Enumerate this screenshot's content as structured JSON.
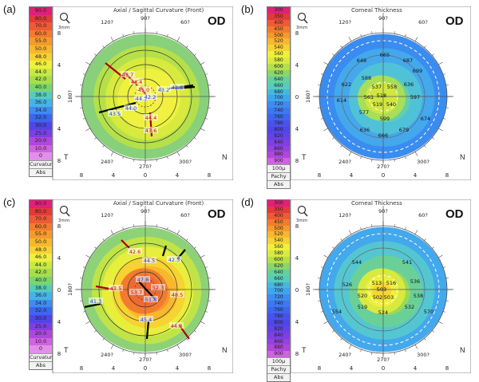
{
  "panels": [
    {
      "label": "(a)",
      "title": "Axial / Sagittal Curvature (Front)",
      "eye": "OD",
      "scale": [
        "90.0",
        "80.0",
        "70.0",
        "60.0",
        "55.0",
        "50.0",
        "48.0",
        "46.0",
        "44.0",
        "42.0",
        "40.0",
        "38.0",
        "36.0",
        "34.0",
        "32.0",
        "30.0",
        "25.0",
        "20.0",
        "10.0",
        "0"
      ],
      "scale_colors": [
        "#e0207a",
        "#e23a3a",
        "#ee5a35",
        "#f37b2e",
        "#f59a2c",
        "#f7b82e",
        "#f6d233",
        "#eef03c",
        "#c8e842",
        "#a6de4a",
        "#7bd66a",
        "#54cdbc",
        "#46b2e6",
        "#3e8cf0",
        "#3d66ef",
        "#4f46e8",
        "#7e3fe3",
        "#b046dc",
        "#cf63e0",
        "#e090e8"
      ],
      "scale_footer": [
        "Curvature",
        "Abs"
      ],
      "zone_colors": [
        "#88d07a",
        "#b5e04a",
        "#d8ea3e",
        "#eef23e",
        "#f2f040"
      ],
      "inner_colors": [],
      "values": [
        {
          "t": "43.7",
          "c": "#cc0000",
          "x": -22,
          "y": -27
        },
        {
          "t": "44.4",
          "c": "#cc0000",
          "x": -11,
          "y": -18
        },
        {
          "t": "45.0",
          "c": "#cc0000",
          "x": -2,
          "y": -8
        },
        {
          "t": "43.2",
          "c": "#1a3cff",
          "x": 23,
          "y": -8
        },
        {
          "t": "42.6",
          "c": "#1a3cff",
          "x": 40,
          "y": -11
        },
        {
          "t": "44.1",
          "c": "#1a3cff",
          "x": -5,
          "y": 3
        },
        {
          "t": "42.2",
          "c": "#1a3cff",
          "x": 6,
          "y": 1
        },
        {
          "t": "44.0",
          "c": "#1a3cff",
          "x": -18,
          "y": 15
        },
        {
          "t": "43.5",
          "c": "#1a3cff",
          "x": -38,
          "y": 22
        },
        {
          "t": "44.4",
          "c": "#cc0000",
          "x": 7,
          "y": 27
        },
        {
          "t": "43.6",
          "c": "#cc0000",
          "x": 7,
          "y": 43
        }
      ],
      "angles": {
        "top": "90?",
        "upper_left": "120?",
        "upper_right": "60?",
        "left": "180?",
        "lower_left": "240?",
        "bottom": "270?",
        "lower_right": "300?"
      },
      "xticks": [
        "8",
        "4",
        "0",
        "4",
        "8"
      ],
      "yticks": [
        "8",
        "4",
        "0",
        "4",
        "8"
      ],
      "corner_left": "T",
      "corner_right": "N",
      "extra_label": "",
      "mm_label": "3mm"
    },
    {
      "label": "(b)",
      "title": "Corneal Thickness",
      "eye": "OD",
      "scale": [
        "300",
        "350",
        "400",
        "450",
        "500",
        "520",
        "540",
        "560",
        "580",
        "600",
        "620",
        "640",
        "660",
        "680",
        "700",
        "720",
        "740",
        "760",
        "780",
        "800",
        "820",
        "840",
        "860",
        "880",
        "900"
      ],
      "scale_colors": [
        "#e0207a",
        "#e23a3a",
        "#ee5a35",
        "#f37b2e",
        "#f59a2c",
        "#f7b82e",
        "#f6d233",
        "#eef03c",
        "#d8ea40",
        "#b5e04a",
        "#8ad66a",
        "#62d0a0",
        "#54cdbc",
        "#46b8e0",
        "#40a6ec",
        "#3e8cf0",
        "#3d78ef",
        "#3d66ef",
        "#4a52ea",
        "#4f46e8",
        "#6642e6",
        "#7e3fe3",
        "#9542df",
        "#b046dc",
        "#cf63e0"
      ],
      "scale_footer": [
        "100µ",
        "Pachy",
        "Abs"
      ],
      "zone_colors": [
        "#3a8cf0",
        "#44a8ec",
        "#50c2d8",
        "#62d0a8"
      ],
      "inner_colors": [
        "#a8de58",
        "#d0e83e"
      ],
      "values": [
        {
          "t": "665",
          "c": "#111",
          "x": 2,
          "y": -52
        },
        {
          "t": "648",
          "c": "#111",
          "x": -27,
          "y": -45
        },
        {
          "t": "687",
          "c": "#111",
          "x": 31,
          "y": -45
        },
        {
          "t": "622",
          "c": "#111",
          "x": -46,
          "y": -15
        },
        {
          "t": "699",
          "c": "#111",
          "x": 43,
          "y": -32
        },
        {
          "t": "588",
          "c": "#111",
          "x": -21,
          "y": -23
        },
        {
          "t": "537",
          "c": "#111",
          "x": -8,
          "y": -12
        },
        {
          "t": "558",
          "c": "#111",
          "x": 11,
          "y": -12
        },
        {
          "t": "636",
          "c": "#111",
          "x": 32,
          "y": -15
        },
        {
          "t": "561",
          "c": "#111",
          "x": -18,
          "y": 1
        },
        {
          "t": "518",
          "c": "#111",
          "x": -2,
          "y": -1
        },
        {
          "t": "597",
          "c": "#111",
          "x": 40,
          "y": 1
        },
        {
          "t": "614",
          "c": "#111",
          "x": -52,
          "y": 5
        },
        {
          "t": "519",
          "c": "#111",
          "x": -7,
          "y": 10
        },
        {
          "t": "540",
          "c": "#111",
          "x": 10,
          "y": 10
        },
        {
          "t": "577",
          "c": "#111",
          "x": -24,
          "y": 20
        },
        {
          "t": "599",
          "c": "#111",
          "x": 2,
          "y": 28
        },
        {
          "t": "674",
          "c": "#111",
          "x": 53,
          "y": 28
        },
        {
          "t": "636",
          "c": "#111",
          "x": -23,
          "y": 42
        },
        {
          "t": "666",
          "c": "#111",
          "x": 0,
          "y": 49
        },
        {
          "t": "679",
          "c": "#111",
          "x": 26,
          "y": 42
        }
      ],
      "angles": {
        "top": "90?",
        "upper_left": "120?",
        "upper_right": "60?",
        "left": "180?",
        "lower_left": "240?",
        "bottom": "270?",
        "lower_right": "300?"
      },
      "xticks": [
        "8",
        "4",
        "0",
        "4",
        "8"
      ],
      "yticks": [
        "8",
        "4",
        "0",
        "4",
        "8"
      ],
      "corner_left": "T",
      "corner_right": "N",
      "extra_label": "",
      "mm_label": "3mm"
    },
    {
      "label": "(c)",
      "title": "Axial / Sagittal Curvature (Front)",
      "eye": "OD",
      "scale": [
        "90.0",
        "80.0",
        "70.0",
        "60.0",
        "55.0",
        "50.0",
        "48.0",
        "46.0",
        "44.0",
        "42.0",
        "40.0",
        "38.0",
        "36.0",
        "34.0",
        "32.0",
        "30.0",
        "25.0",
        "20.0",
        "10.0",
        "0"
      ],
      "scale_colors": [
        "#e0207a",
        "#e23a3a",
        "#ee5a35",
        "#f37b2e",
        "#f59a2c",
        "#f7b82e",
        "#f6d233",
        "#eef03c",
        "#c8e842",
        "#a6de4a",
        "#7bd66a",
        "#54cdbc",
        "#46b2e6",
        "#3e8cf0",
        "#3d66ef",
        "#4f46e8",
        "#7e3fe3",
        "#b046dc",
        "#cf63e0",
        "#e090e8"
      ],
      "scale_footer": [
        "Curvature",
        "Abs"
      ],
      "zone_colors": [
        "#8ed278",
        "#c0e448",
        "#e8ee3c",
        "#f6d233",
        "#f7b82e",
        "#f59a2c"
      ],
      "inner_colors": [
        "#f37b2e",
        "#ee6a32"
      ],
      "values": [
        {
          "t": "42.6",
          "c": "#cc0000",
          "x": -13,
          "y": -47
        },
        {
          "t": "44.5",
          "c": "#1a3cff",
          "x": 5,
          "y": -36
        },
        {
          "t": "42.3",
          "c": "#1a3cff",
          "x": 36,
          "y": -37
        },
        {
          "t": "47.8",
          "c": "#1a3cff",
          "x": -3,
          "y": -12
        },
        {
          "t": "43.5",
          "c": "#cc0000",
          "x": -37,
          "y": -1
        },
        {
          "t": "52.3",
          "c": "#cc0000",
          "x": 16,
          "y": -2
        },
        {
          "t": "53.7",
          "c": "#cc0000",
          "x": -11,
          "y": 4
        },
        {
          "t": "48.5",
          "c": "#cc0000",
          "x": 40,
          "y": 7
        },
        {
          "t": "51.8",
          "c": "#1a3cff",
          "x": 7,
          "y": 13
        },
        {
          "t": "41.3",
          "c": "#1a3cff",
          "x": -62,
          "y": 15
        },
        {
          "t": "45.4",
          "c": "#1a3cff",
          "x": 1,
          "y": 38
        },
        {
          "t": "44.8",
          "c": "#cc0000",
          "x": 39,
          "y": 46
        }
      ],
      "angles": {
        "top": "90?",
        "upper_left": "120?",
        "upper_right": "60?",
        "left": "180?",
        "lower_left": "240?",
        "bottom": "270?",
        "lower_right": "300?"
      },
      "xticks": [
        "8",
        "4",
        "0",
        "4",
        "8"
      ],
      "yticks": [
        "8",
        "4",
        "0",
        "4",
        "8"
      ],
      "corner_left": "T",
      "corner_right": "N",
      "extra_label": "",
      "mm_label": "3mm"
    },
    {
      "label": "(d)",
      "title": "Corneal Thickness",
      "eye": "OD",
      "scale": [
        "300",
        "350",
        "400",
        "450",
        "500",
        "520",
        "540",
        "560",
        "580",
        "600",
        "620",
        "640",
        "660",
        "680",
        "700",
        "720",
        "740",
        "760",
        "780",
        "800",
        "820",
        "840",
        "860",
        "880",
        "900"
      ],
      "scale_colors": [
        "#e0207a",
        "#e23a3a",
        "#ee5a35",
        "#f37b2e",
        "#f59a2c",
        "#f7b82e",
        "#f6d233",
        "#eef03c",
        "#d8ea40",
        "#b5e04a",
        "#8ad66a",
        "#62d0a0",
        "#54cdbc",
        "#46b8e0",
        "#40a6ec",
        "#3e8cf0",
        "#3d78ef",
        "#3d66ef",
        "#4a52ea",
        "#4f46e8",
        "#6642e6",
        "#7e3fe3",
        "#9542df",
        "#b046dc",
        "#cf63e0"
      ],
      "scale_footer": [
        "100µ",
        "Pachy",
        "Abs"
      ],
      "zone_colors": [
        "#44a8ec",
        "#54c6d2",
        "#6ad098",
        "#9ada5a"
      ],
      "inner_colors": [
        "#d8ea40",
        "#eef03c",
        "#f6d633"
      ],
      "values": [
        {
          "t": "526",
          "c": "#111",
          "x": -45,
          "y": -6
        },
        {
          "t": "513",
          "c": "#111",
          "x": -8,
          "y": -8
        },
        {
          "t": "516",
          "c": "#111",
          "x": 10,
          "y": -8
        },
        {
          "t": "536",
          "c": "#111",
          "x": 40,
          "y": -10
        },
        {
          "t": "503",
          "c": "#111",
          "x": -2,
          "y": 0
        },
        {
          "t": "502",
          "c": "#111",
          "x": -7,
          "y": 10
        },
        {
          "t": "503",
          "c": "#111",
          "x": 7,
          "y": 10
        },
        {
          "t": "520",
          "c": "#111",
          "x": -26,
          "y": 8
        },
        {
          "t": "538",
          "c": "#111",
          "x": 44,
          "y": 8
        },
        {
          "t": "519",
          "c": "#111",
          "x": -26,
          "y": 22
        },
        {
          "t": "554",
          "c": "#111",
          "x": -58,
          "y": 28
        },
        {
          "t": "524",
          "c": "#111",
          "x": 0,
          "y": 29
        },
        {
          "t": "532",
          "c": "#111",
          "x": 33,
          "y": 22
        },
        {
          "t": "570",
          "c": "#111",
          "x": 57,
          "y": 28
        },
        {
          "t": "544",
          "c": "#111",
          "x": -33,
          "y": -34
        },
        {
          "t": "541",
          "c": "#111",
          "x": 30,
          "y": -34
        }
      ],
      "angles": {
        "top": "90?",
        "upper_left": "120?",
        "upper_right": "60?",
        "left": "180?",
        "lower_left": "240?",
        "bottom": "270?",
        "lower_right": "300?"
      },
      "xticks": [
        "8",
        "4",
        "0",
        "4",
        "8"
      ],
      "yticks": [
        "8",
        "4",
        "0",
        "4",
        "8"
      ],
      "corner_left": "T",
      "corner_right": "N",
      "extra_label": "",
      "mm_label": "3mm"
    }
  ]
}
